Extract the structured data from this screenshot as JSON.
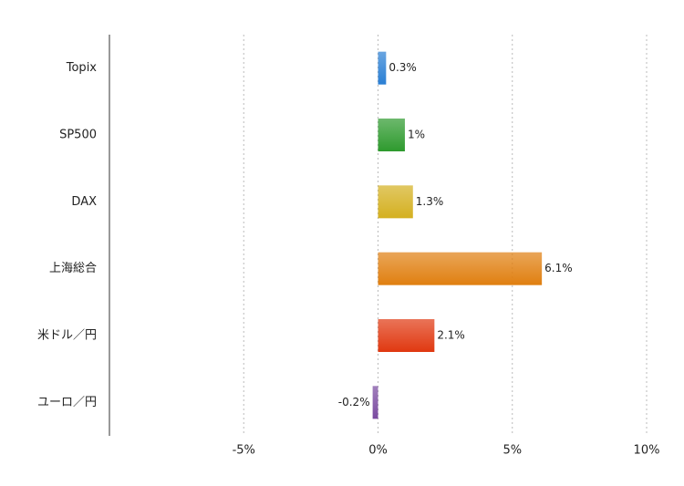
{
  "chart_data": {
    "type": "bar",
    "orientation": "horizontal",
    "categories": [
      "Topix",
      "SP500",
      "DAX",
      "上海総合",
      "米ドル／円",
      "ユーロ／円"
    ],
    "values": [
      0.3,
      1,
      1.3,
      6.1,
      2.1,
      -0.2
    ],
    "value_labels": [
      "0.3%",
      "1%",
      "1.3%",
      "6.1%",
      "2.1%",
      "-0.2%"
    ],
    "colors": [
      "#2a7fd4",
      "#2e9a2e",
      "#d4b020",
      "#e07f10",
      "#e03810",
      "#7a4aa0"
    ],
    "xlim": [
      -10,
      10
    ],
    "xticks": [
      {
        "value": -5,
        "label": "-5%"
      },
      {
        "value": 0,
        "label": "0%"
      },
      {
        "value": 5,
        "label": "5%"
      },
      {
        "value": 10,
        "label": "10%"
      }
    ],
    "grid": true
  }
}
